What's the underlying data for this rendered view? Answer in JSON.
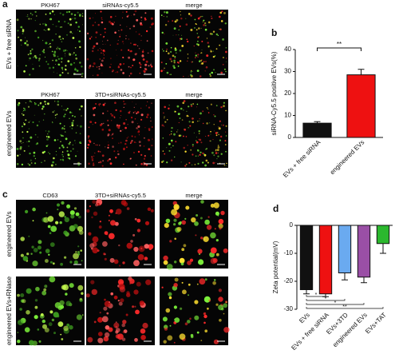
{
  "image_panels": [
    {
      "label": "a",
      "rows": [
        {
          "label": "EVs + free siRNA",
          "columns": [
            "PKH67",
            "siRNAs-cy5.5",
            "merge"
          ]
        },
        {
          "label": "engineered EVs",
          "columns": [
            "PKH67",
            "3TD+siRNAs-cy5.5",
            "merge"
          ]
        }
      ]
    },
    {
      "label": "c",
      "rows": [
        {
          "label": "engineered EVs",
          "columns": [
            "CD63",
            "3TD+siRNAs-cy5.5",
            "merge"
          ]
        },
        {
          "label": "engineered EVs+RNase",
          "columns": [
            null,
            null,
            null
          ]
        }
      ]
    }
  ],
  "chart_data": [
    {
      "type": "bar",
      "label": "b",
      "ylabel": "siRNA-Cy5.5 positive EVs(%)",
      "categories": [
        "EVs + free siRNA",
        "engineered EVs"
      ],
      "values": [
        6.5,
        28.5
      ],
      "errors": [
        0.7,
        2.5
      ],
      "colors": [
        "#111111",
        "#ee1111"
      ],
      "ylim": [
        0,
        40
      ],
      "yticks": [
        0,
        10,
        20,
        30,
        40
      ],
      "annotations": [
        "**"
      ]
    },
    {
      "type": "bar",
      "label": "d",
      "ylabel": "Zeta potential(mV)",
      "categories": [
        "EVs",
        "EVs + free siRNA",
        "EVs+3TD",
        "engineered EVs",
        "EVs+TAT"
      ],
      "values": [
        -23,
        -24.5,
        -17,
        -18.5,
        -6.5
      ],
      "errors": [
        1.5,
        1,
        2.5,
        2,
        3.5
      ],
      "colors": [
        "#111111",
        "#ee1111",
        "#6aaaf0",
        "#9a4fa6",
        "#2bb82e"
      ],
      "ylim": [
        -30,
        0
      ],
      "yticks": [
        -30,
        -20,
        -10,
        0
      ],
      "annotations": [
        "*",
        "*",
        "*",
        "**"
      ]
    }
  ]
}
